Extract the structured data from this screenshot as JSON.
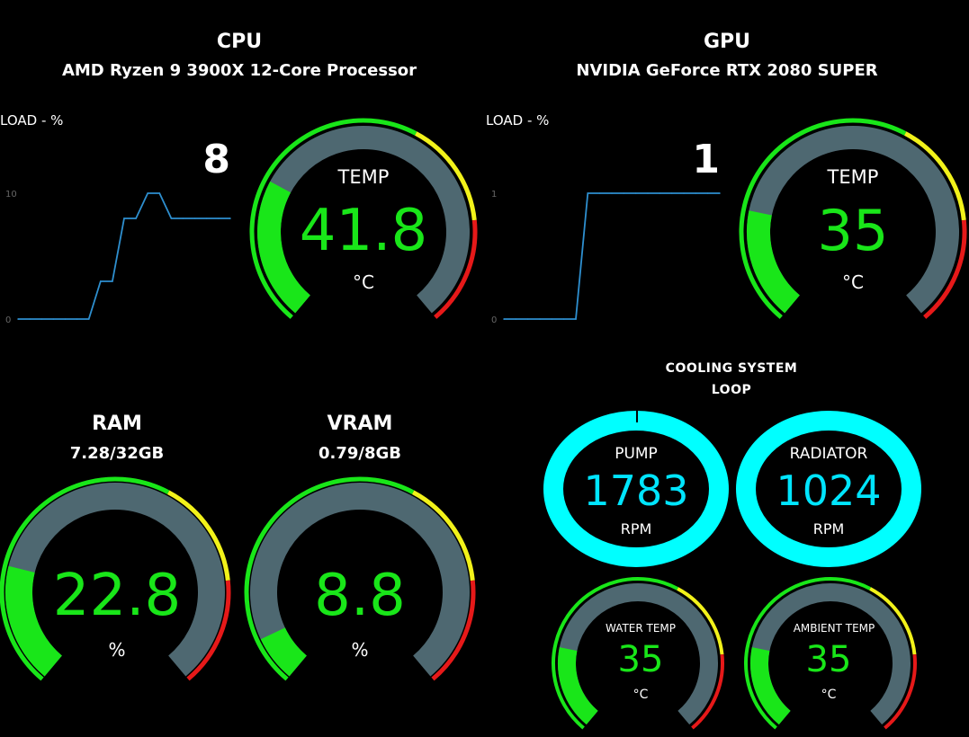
{
  "colors": {
    "background": "#000000",
    "gauge_track": "#4e6871",
    "green": "#19e619",
    "yellow": "#f2f21a",
    "red": "#e61919",
    "cyan": "#00ffff",
    "chart_line": "#2e8fcf"
  },
  "cpu": {
    "title": "CPU",
    "model": "AMD Ryzen 9 3900X 12-Core Processor",
    "load_label": "LOAD - %",
    "load_value": "8",
    "temp_label": "TEMP",
    "temp_value": "41.8",
    "temp_unit": "°C",
    "temp_fraction": 0.28
  },
  "gpu": {
    "title": "GPU",
    "model": "NVIDIA GeForce RTX 2080 SUPER",
    "load_label": "LOAD - %",
    "load_value": "1",
    "temp_label": "TEMP",
    "temp_value": "35",
    "temp_unit": "°C",
    "temp_fraction": 0.22
  },
  "ram": {
    "title": "RAM",
    "usage": "7.28/32GB",
    "value": "22.8",
    "unit": "%",
    "fraction": 0.228
  },
  "vram": {
    "title": "VRAM",
    "usage": "0.79/8GB",
    "value": "8.8",
    "unit": "%",
    "fraction": 0.088
  },
  "cooling": {
    "title": "COOLING SYSTEM",
    "subtitle": "LOOP",
    "pump_label": "PUMP",
    "pump_value": "1783",
    "pump_unit": "RPM",
    "radiator_label": "RADIATOR",
    "radiator_value": "1024",
    "radiator_unit": "RPM",
    "water_label": "WATER TEMP",
    "water_value": "35",
    "water_unit": "°C",
    "water_fraction": 0.22,
    "ambient_label": "AMBIENT TEMP",
    "ambient_value": "35",
    "ambient_unit": "°C",
    "ambient_fraction": 0.22
  },
  "chart_data": [
    {
      "type": "line",
      "name_ref": "cpu-load",
      "ylabel": "LOAD - %",
      "yticks": [
        "10",
        "0"
      ],
      "ylim": [
        0,
        10
      ],
      "x": [
        0,
        1,
        2,
        3,
        4,
        5,
        6,
        7,
        8,
        9,
        10,
        11,
        12,
        13,
        14,
        15,
        16,
        17,
        18
      ],
      "values": [
        0,
        0,
        0,
        0,
        0,
        0,
        0,
        3,
        3,
        8,
        8,
        10,
        10,
        8,
        8,
        8,
        8,
        8,
        8
      ]
    },
    {
      "type": "line",
      "name_ref": "gpu-load",
      "ylabel": "LOAD - %",
      "yticks": [
        "1",
        "0"
      ],
      "ylim": [
        0,
        1
      ],
      "x": [
        0,
        1,
        2,
        3,
        4,
        5,
        6,
        7,
        8,
        9,
        10,
        11,
        12,
        13,
        14,
        15,
        16,
        17,
        18
      ],
      "values": [
        0,
        0,
        0,
        0,
        0,
        0,
        0,
        1,
        1,
        1,
        1,
        1,
        1,
        1,
        1,
        1,
        1,
        1,
        1
      ]
    }
  ]
}
